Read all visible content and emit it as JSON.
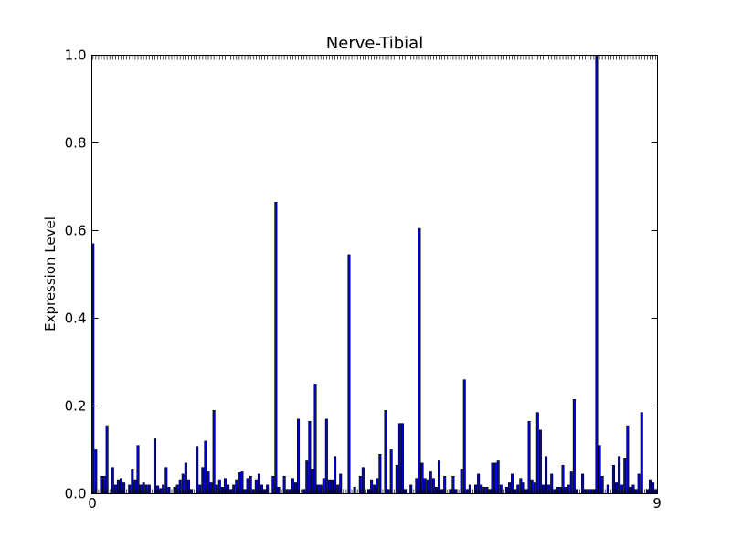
{
  "chart_data": {
    "type": "bar",
    "title": "Nerve-Tibial",
    "xlabel": "",
    "ylabel": "Expression Level",
    "ylim": [
      0,
      1.0
    ],
    "y_ticks": [
      "0.0",
      "0.2",
      "0.4",
      "0.6",
      "0.8",
      "1.0"
    ],
    "x_tick_labels_visible": "illegible overlapping sample indices",
    "x_tick_first": "0",
    "x_tick_last": "9",
    "bar_color": "#0000cc",
    "bar_edge_color": "#000000",
    "grid": false,
    "values": [
      0.57,
      0.1,
      0.0,
      0.04,
      0.04,
      0.155,
      0.0,
      0.06,
      0.02,
      0.03,
      0.035,
      0.025,
      0.0,
      0.02,
      0.055,
      0.03,
      0.11,
      0.02,
      0.025,
      0.02,
      0.02,
      0.0,
      0.125,
      0.018,
      0.012,
      0.02,
      0.06,
      0.015,
      0.0,
      0.015,
      0.02,
      0.03,
      0.045,
      0.07,
      0.03,
      0.01,
      0.0,
      0.108,
      0.02,
      0.06,
      0.12,
      0.05,
      0.025,
      0.19,
      0.02,
      0.03,
      0.015,
      0.035,
      0.02,
      0.01,
      0.02,
      0.03,
      0.048,
      0.05,
      0.01,
      0.035,
      0.04,
      0.01,
      0.03,
      0.045,
      0.02,
      0.01,
      0.02,
      0.0,
      0.04,
      0.665,
      0.015,
      0.0,
      0.04,
      0.01,
      0.01,
      0.035,
      0.025,
      0.17,
      0.0,
      0.01,
      0.075,
      0.165,
      0.055,
      0.25,
      0.02,
      0.02,
      0.035,
      0.17,
      0.03,
      0.03,
      0.085,
      0.02,
      0.045,
      0.0,
      0.0,
      0.545,
      0.0,
      0.015,
      0.0,
      0.04,
      0.06,
      0.0,
      0.01,
      0.03,
      0.02,
      0.035,
      0.09,
      0.0,
      0.19,
      0.01,
      0.1,
      0.0,
      0.065,
      0.16,
      0.16,
      0.01,
      0.0,
      0.02,
      0.0,
      0.035,
      0.605,
      0.07,
      0.035,
      0.03,
      0.05,
      0.035,
      0.015,
      0.075,
      0.01,
      0.04,
      0.0,
      0.01,
      0.04,
      0.01,
      0.0,
      0.055,
      0.26,
      0.01,
      0.02,
      0.0,
      0.02,
      0.045,
      0.02,
      0.015,
      0.015,
      0.01,
      0.07,
      0.07,
      0.075,
      0.02,
      0.0,
      0.015,
      0.025,
      0.045,
      0.01,
      0.02,
      0.035,
      0.025,
      0.01,
      0.165,
      0.03,
      0.025,
      0.185,
      0.145,
      0.02,
      0.085,
      0.02,
      0.045,
      0.01,
      0.015,
      0.015,
      0.065,
      0.015,
      0.02,
      0.05,
      0.215,
      0.01,
      0.0,
      0.045,
      0.01,
      0.01,
      0.01,
      0.01,
      1.0,
      0.11,
      0.04,
      0.0,
      0.02,
      0.0,
      0.065,
      0.025,
      0.085,
      0.02,
      0.08,
      0.155,
      0.015,
      0.02,
      0.01,
      0.045,
      0.185,
      0.0,
      0.01,
      0.03,
      0.025,
      0.01
    ]
  }
}
